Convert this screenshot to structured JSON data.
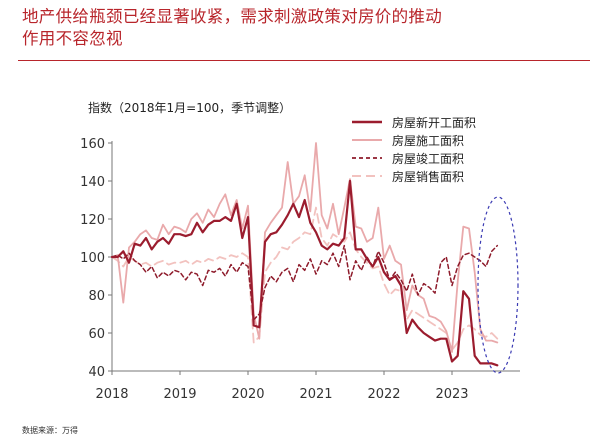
{
  "header": {
    "title_line1": "地产供给瓶颈已经显著收紧，需求刺激政策对房价的推动",
    "title_line2": "作用不容忽视"
  },
  "footer": {
    "source": "数据来源：万得"
  },
  "colors": {
    "title": "#b8252b",
    "new_starts": "#9b1c2e",
    "under_construction": "#e9a9ab",
    "completed": "#8e1b2b",
    "sales": "#f2c2bf",
    "highlight": "#3b3bb3"
  },
  "chart_data": {
    "type": "line",
    "ylabel": "指数（2018年1月=100，季节调整）",
    "ylim": [
      40,
      160
    ],
    "yticks": [
      40,
      60,
      80,
      100,
      120,
      140,
      160
    ],
    "xlim": [
      2018.0,
      2024.0
    ],
    "xticks": [
      2018,
      2019,
      2020,
      2021,
      2022,
      2023
    ],
    "grid": false,
    "legend_position": "top-right",
    "annotation": "dashed ellipse highlighting 2023 data",
    "series": [
      {
        "name": "房屋新开工面积",
        "style": "solid-thick",
        "x": [
          2018.0,
          2018.0833,
          2018.1667,
          2018.25,
          2018.3333,
          2018.4167,
          2018.5,
          2018.5833,
          2018.6667,
          2018.75,
          2018.8333,
          2018.9167,
          2019.0,
          2019.0833,
          2019.1667,
          2019.25,
          2019.3333,
          2019.4167,
          2019.5,
          2019.5833,
          2019.6667,
          2019.75,
          2019.8333,
          2019.9167,
          2020.0,
          2020.0833,
          2020.1667,
          2020.25,
          2020.3333,
          2020.4167,
          2020.5,
          2020.5833,
          2020.6667,
          2020.75,
          2020.8333,
          2020.9167,
          2021.0,
          2021.0833,
          2021.1667,
          2021.25,
          2021.3333,
          2021.4167,
          2021.5,
          2021.5833,
          2021.6667,
          2021.75,
          2021.8333,
          2021.9167,
          2022.0,
          2022.0833,
          2022.1667,
          2022.25,
          2022.3333,
          2022.4167,
          2022.5,
          2022.5833,
          2022.6667,
          2022.75,
          2022.8333,
          2022.9167,
          2023.0,
          2023.0833,
          2023.1667,
          2023.25,
          2023.3333,
          2023.4167,
          2023.5,
          2023.5833,
          2023.6667
        ],
        "values": [
          100,
          100,
          103,
          97,
          107,
          106,
          110,
          104,
          108,
          110,
          107,
          112,
          112,
          111,
          112,
          118,
          113,
          117,
          119,
          119,
          121,
          119,
          128,
          110,
          121,
          64,
          63,
          108,
          112,
          113,
          117,
          122,
          128,
          121,
          130,
          118,
          113,
          106,
          104,
          107,
          106,
          110,
          140,
          104,
          104,
          99,
          95,
          100,
          92,
          88,
          90,
          85,
          60,
          67,
          63,
          60,
          58,
          56,
          57,
          57,
          45,
          48,
          82,
          78,
          48,
          44,
          44,
          44,
          43
        ]
      },
      {
        "name": "房屋施工面积",
        "style": "solid",
        "x": [
          2018.0,
          2018.0833,
          2018.1667,
          2018.25,
          2018.3333,
          2018.4167,
          2018.5,
          2018.5833,
          2018.6667,
          2018.75,
          2018.8333,
          2018.9167,
          2019.0,
          2019.0833,
          2019.1667,
          2019.25,
          2019.3333,
          2019.4167,
          2019.5,
          2019.5833,
          2019.6667,
          2019.75,
          2019.8333,
          2019.9167,
          2020.0,
          2020.0833,
          2020.1667,
          2020.25,
          2020.3333,
          2020.4167,
          2020.5,
          2020.5833,
          2020.6667,
          2020.75,
          2020.8333,
          2020.9167,
          2021.0,
          2021.0833,
          2021.1667,
          2021.25,
          2021.3333,
          2021.4167,
          2021.5,
          2021.5833,
          2021.6667,
          2021.75,
          2021.8333,
          2021.9167,
          2022.0,
          2022.0833,
          2022.1667,
          2022.25,
          2022.3333,
          2022.4167,
          2022.5,
          2022.5833,
          2022.6667,
          2022.75,
          2022.8333,
          2022.9167,
          2023.0,
          2023.0833,
          2023.1667,
          2023.25,
          2023.3333,
          2023.4167,
          2023.5,
          2023.5833,
          2023.6667
        ],
        "values": [
          100,
          101,
          76,
          105,
          108,
          112,
          114,
          110,
          109,
          117,
          112,
          116,
          115,
          113,
          120,
          123,
          118,
          125,
          121,
          128,
          133,
          122,
          130,
          115,
          127,
          70,
          57,
          113,
          118,
          122,
          126,
          150,
          128,
          132,
          143,
          124,
          160,
          122,
          115,
          128,
          112,
          126,
          141,
          116,
          115,
          108,
          110,
          126,
          99,
          106,
          98,
          96,
          72,
          85,
          80,
          78,
          69,
          68,
          66,
          61,
          50,
          87,
          116,
          115,
          92,
          62,
          56,
          56,
          55
        ]
      },
      {
        "name": "房屋竣工面积",
        "style": "dashed-short",
        "x": [
          2018.0,
          2018.0833,
          2018.1667,
          2018.25,
          2018.3333,
          2018.4167,
          2018.5,
          2018.5833,
          2018.6667,
          2018.75,
          2018.8333,
          2018.9167,
          2019.0,
          2019.0833,
          2019.1667,
          2019.25,
          2019.3333,
          2019.4167,
          2019.5,
          2019.5833,
          2019.6667,
          2019.75,
          2019.8333,
          2019.9167,
          2020.0,
          2020.0833,
          2020.1667,
          2020.25,
          2020.3333,
          2020.4167,
          2020.5,
          2020.5833,
          2020.6667,
          2020.75,
          2020.8333,
          2020.9167,
          2021.0,
          2021.0833,
          2021.1667,
          2021.25,
          2021.3333,
          2021.4167,
          2021.5,
          2021.5833,
          2021.6667,
          2021.75,
          2021.8333,
          2021.9167,
          2022.0,
          2022.0833,
          2022.1667,
          2022.25,
          2022.3333,
          2022.4167,
          2022.5,
          2022.5833,
          2022.6667,
          2022.75,
          2022.8333,
          2022.9167,
          2023.0,
          2023.0833,
          2023.1667,
          2023.25,
          2023.3333,
          2023.4167,
          2023.5,
          2023.5833,
          2023.6667
        ],
        "values": [
          100,
          101,
          99,
          102,
          98,
          96,
          92,
          95,
          89,
          92,
          90,
          93,
          92,
          88,
          92,
          91,
          85,
          93,
          92,
          94,
          90,
          96,
          92,
          97,
          95,
          67,
          70,
          84,
          90,
          87,
          92,
          94,
          87,
          96,
          93,
          99,
          91,
          98,
          96,
          102,
          95,
          106,
          88,
          98,
          93,
          100,
          95,
          103,
          97,
          88,
          92,
          88,
          82,
          91,
          80,
          86,
          84,
          81,
          97,
          100,
          85,
          95,
          101,
          102,
          100,
          98,
          95,
          103,
          106
        ]
      },
      {
        "name": "房屋销售面积",
        "style": "dashed-long",
        "x": [
          2018.0,
          2018.0833,
          2018.1667,
          2018.25,
          2018.3333,
          2018.4167,
          2018.5,
          2018.5833,
          2018.6667,
          2018.75,
          2018.8333,
          2018.9167,
          2019.0,
          2019.0833,
          2019.1667,
          2019.25,
          2019.3333,
          2019.4167,
          2019.5,
          2019.5833,
          2019.6667,
          2019.75,
          2019.8333,
          2019.9167,
          2020.0,
          2020.0833,
          2020.1667,
          2020.25,
          2020.3333,
          2020.4167,
          2020.5,
          2020.5833,
          2020.6667,
          2020.75,
          2020.8333,
          2020.9167,
          2021.0,
          2021.0833,
          2021.1667,
          2021.25,
          2021.3333,
          2021.4167,
          2021.5,
          2021.5833,
          2021.6667,
          2021.75,
          2021.8333,
          2021.9167,
          2022.0,
          2022.0833,
          2022.1667,
          2022.25,
          2022.3333,
          2022.4167,
          2022.5,
          2022.5833,
          2022.6667,
          2022.75,
          2022.8333,
          2022.9167,
          2023.0,
          2023.0833,
          2023.1667,
          2023.25,
          2023.3333,
          2023.4167,
          2023.5,
          2023.5833,
          2023.6667
        ],
        "values": [
          100,
          98,
          95,
          100,
          98,
          96,
          97,
          95,
          97,
          98,
          96,
          97,
          97,
          98,
          96,
          98,
          97,
          99,
          98,
          100,
          99,
          101,
          100,
          102,
          100,
          55,
          58,
          92,
          97,
          100,
          105,
          104,
          108,
          110,
          113,
          112,
          126,
          110,
          106,
          112,
          110,
          108,
          113,
          104,
          100,
          97,
          94,
          95,
          86,
          80,
          83,
          82,
          67,
          72,
          70,
          68,
          66,
          64,
          62,
          60,
          51,
          55,
          62,
          64,
          62,
          59,
          58,
          60,
          57
        ]
      }
    ]
  }
}
